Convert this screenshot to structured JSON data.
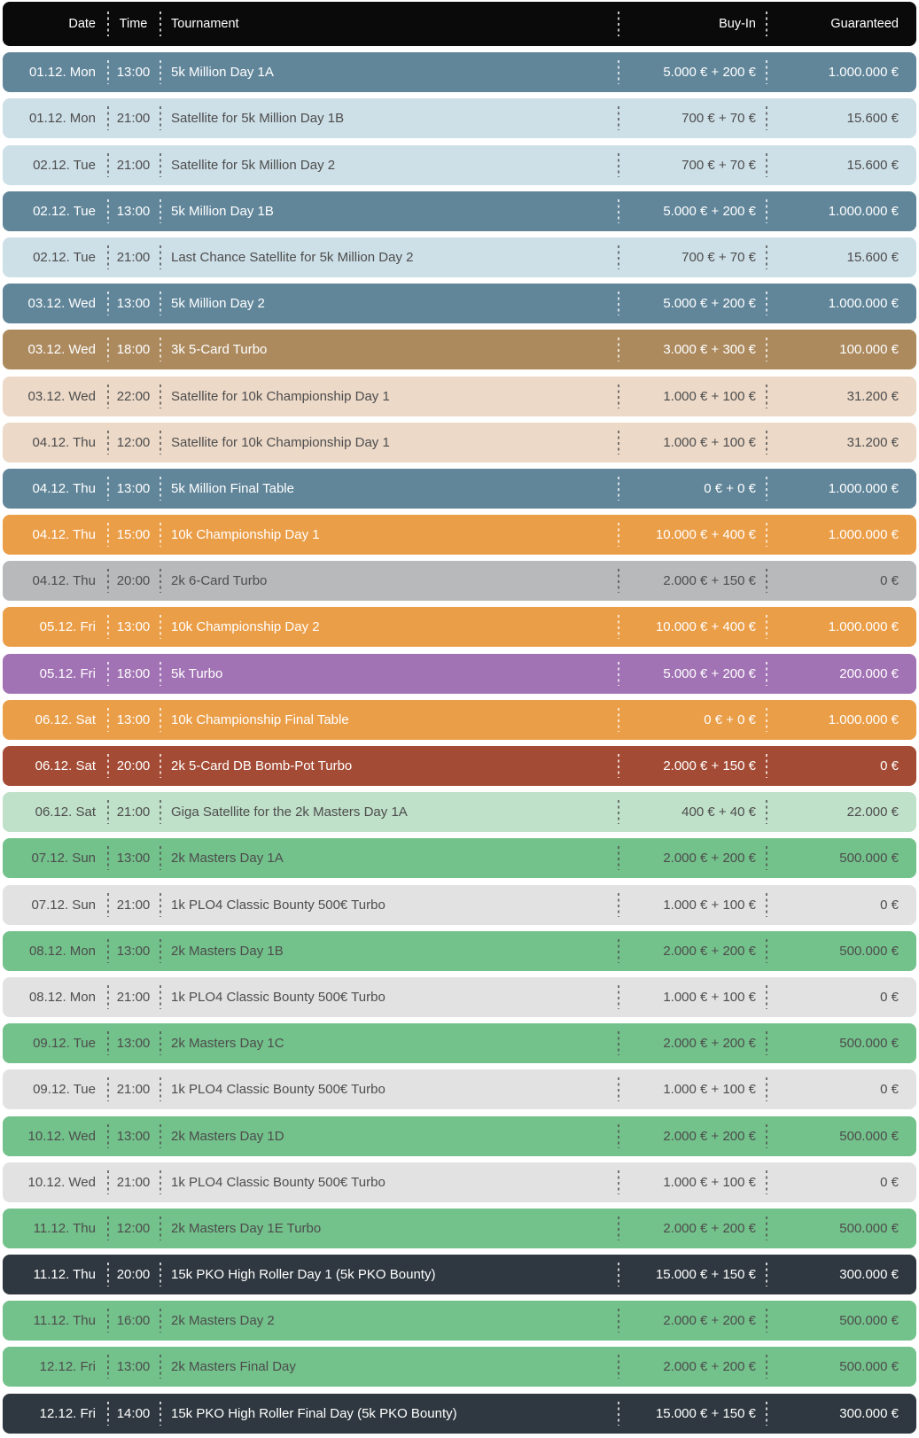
{
  "page": {
    "background": "#ffffff"
  },
  "header": {
    "background": "#0a0a0a",
    "text_color": "#ffffff",
    "labels": {
      "date": "Date",
      "time": "Time",
      "tournament": "Tournament",
      "buyin": "Buy-In",
      "guaranteed": "Guaranteed"
    }
  },
  "variants": {
    "blue": {
      "bg": "#61869a",
      "fg": "#ffffff"
    },
    "lightblue": {
      "bg": "#cddfe7",
      "fg": "#4d4d4d"
    },
    "brown": {
      "bg": "#ac8a5e",
      "fg": "#ffffff"
    },
    "tan": {
      "bg": "#ecd9c8",
      "fg": "#4d4d4d"
    },
    "orange": {
      "bg": "#eb9e48",
      "fg": "#ffffff"
    },
    "gray": {
      "bg": "#b8b9ba",
      "fg": "#4d4d4d"
    },
    "purple": {
      "bg": "#a273b4",
      "fg": "#ffffff"
    },
    "rust": {
      "bg": "#a44b35",
      "fg": "#ffffff"
    },
    "lightgreen": {
      "bg": "#bfe0c9",
      "fg": "#4d4d4d"
    },
    "green": {
      "bg": "#73c18b",
      "fg": "#4d4d4d"
    },
    "lightgray": {
      "bg": "#e2e2e2",
      "fg": "#4d4d4d"
    },
    "dark": {
      "bg": "#2f3840",
      "fg": "#ffffff"
    }
  },
  "rows": [
    {
      "date": "01.12. Mon",
      "time": "13:00",
      "tournament": "5k Million Day 1A",
      "buyin": "5.000 € + 200 €",
      "guaranteed": "1.000.000 €",
      "variant": "blue"
    },
    {
      "date": "01.12. Mon",
      "time": "21:00",
      "tournament": "Satellite for 5k Million Day 1B",
      "buyin": "700 € + 70 €",
      "guaranteed": "15.600 €",
      "variant": "lightblue"
    },
    {
      "date": "02.12. Tue",
      "time": "21:00",
      "tournament": "Satellite for 5k Million Day 2",
      "buyin": "700 € + 70 €",
      "guaranteed": "15.600 €",
      "variant": "lightblue"
    },
    {
      "date": "02.12. Tue",
      "time": "13:00",
      "tournament": "5k Million Day 1B",
      "buyin": "5.000 € + 200 €",
      "guaranteed": "1.000.000 €",
      "variant": "blue"
    },
    {
      "date": "02.12. Tue",
      "time": "21:00",
      "tournament": "Last Chance Satellite for 5k Million Day 2",
      "buyin": "700 € + 70 €",
      "guaranteed": "15.600 €",
      "variant": "lightblue"
    },
    {
      "date": "03.12. Wed",
      "time": "13:00",
      "tournament": "5k Million Day 2",
      "buyin": "5.000 € + 200 €",
      "guaranteed": "1.000.000 €",
      "variant": "blue"
    },
    {
      "date": "03.12. Wed",
      "time": "18:00",
      "tournament": "3k 5-Card Turbo",
      "buyin": "3.000 € + 300 €",
      "guaranteed": "100.000 €",
      "variant": "brown"
    },
    {
      "date": "03.12. Wed",
      "time": "22:00",
      "tournament": "Satellite for 10k Championship Day 1",
      "buyin": "1.000 € + 100 €",
      "guaranteed": "31.200 €",
      "variant": "tan"
    },
    {
      "date": "04.12. Thu",
      "time": "12:00",
      "tournament": "Satellite for 10k Championship Day 1",
      "buyin": "1.000 € + 100 €",
      "guaranteed": "31.200 €",
      "variant": "tan"
    },
    {
      "date": "04.12. Thu",
      "time": "13:00",
      "tournament": "5k Million Final Table",
      "buyin": "0 € + 0 €",
      "guaranteed": "1.000.000 €",
      "variant": "blue"
    },
    {
      "date": "04.12. Thu",
      "time": "15:00",
      "tournament": "10k Championship Day 1",
      "buyin": "10.000 € + 400 €",
      "guaranteed": "1.000.000 €",
      "variant": "orange"
    },
    {
      "date": "04.12. Thu",
      "time": "20:00",
      "tournament": "2k 6-Card Turbo",
      "buyin": "2.000 € + 150 €",
      "guaranteed": "0 €",
      "variant": "gray"
    },
    {
      "date": "05.12. Fri",
      "time": "13:00",
      "tournament": "10k Championship Day 2",
      "buyin": "10.000 € + 400 €",
      "guaranteed": "1.000.000 €",
      "variant": "orange"
    },
    {
      "date": "05.12. Fri",
      "time": "18:00",
      "tournament": "5k Turbo",
      "buyin": "5.000 € + 200 €",
      "guaranteed": "200.000 €",
      "variant": "purple"
    },
    {
      "date": "06.12. Sat",
      "time": "13:00",
      "tournament": "10k Championship Final Table",
      "buyin": "0 € + 0 €",
      "guaranteed": "1.000.000 €",
      "variant": "orange"
    },
    {
      "date": "06.12. Sat",
      "time": "20:00",
      "tournament": "2k 5-Card DB Bomb-Pot Turbo",
      "buyin": "2.000 € + 150 €",
      "guaranteed": "0 €",
      "variant": "rust"
    },
    {
      "date": "06.12. Sat",
      "time": "21:00",
      "tournament": "Giga Satellite for the 2k Masters Day 1A",
      "buyin": "400 € + 40 €",
      "guaranteed": "22.000 €",
      "variant": "lightgreen"
    },
    {
      "date": "07.12. Sun",
      "time": "13:00",
      "tournament": "2k Masters Day 1A",
      "buyin": "2.000 € + 200 €",
      "guaranteed": "500.000 €",
      "variant": "green"
    },
    {
      "date": "07.12. Sun",
      "time": "21:00",
      "tournament": "1k PLO4 Classic Bounty 500€ Turbo",
      "buyin": "1.000 € + 100 €",
      "guaranteed": "0 €",
      "variant": "lightgray"
    },
    {
      "date": "08.12. Mon",
      "time": "13:00",
      "tournament": "2k Masters Day 1B",
      "buyin": "2.000 € + 200 €",
      "guaranteed": "500.000 €",
      "variant": "green"
    },
    {
      "date": "08.12. Mon",
      "time": "21:00",
      "tournament": "1k PLO4 Classic Bounty 500€ Turbo",
      "buyin": "1.000 € + 100 €",
      "guaranteed": "0 €",
      "variant": "lightgray"
    },
    {
      "date": "09.12. Tue",
      "time": "13:00",
      "tournament": "2k Masters Day 1C",
      "buyin": "2.000 € + 200 €",
      "guaranteed": "500.000 €",
      "variant": "green"
    },
    {
      "date": "09.12. Tue",
      "time": "21:00",
      "tournament": "1k PLO4 Classic Bounty 500€ Turbo",
      "buyin": "1.000 € + 100 €",
      "guaranteed": "0 €",
      "variant": "lightgray"
    },
    {
      "date": "10.12. Wed",
      "time": "13:00",
      "tournament": "2k Masters Day 1D",
      "buyin": "2.000 € + 200 €",
      "guaranteed": "500.000 €",
      "variant": "green"
    },
    {
      "date": "10.12. Wed",
      "time": "21:00",
      "tournament": "1k PLO4 Classic Bounty 500€ Turbo",
      "buyin": "1.000 € + 100 €",
      "guaranteed": "0 €",
      "variant": "lightgray"
    },
    {
      "date": "11.12. Thu",
      "time": "12:00",
      "tournament": "2k Masters Day 1E Turbo",
      "buyin": "2.000 € + 200 €",
      "guaranteed": "500.000 €",
      "variant": "green"
    },
    {
      "date": "11.12. Thu",
      "time": "20:00",
      "tournament": "15k PKO High Roller Day 1 (5k PKO Bounty)",
      "buyin": "15.000 € + 150 €",
      "guaranteed": "300.000 €",
      "variant": "dark"
    },
    {
      "date": "11.12. Thu",
      "time": "16:00",
      "tournament": "2k Masters Day 2",
      "buyin": "2.000 € + 200 €",
      "guaranteed": "500.000 €",
      "variant": "green"
    },
    {
      "date": "12.12. Fri",
      "time": "13:00",
      "tournament": "2k Masters Final Day",
      "buyin": "2.000 € + 200 €",
      "guaranteed": "500.000 €",
      "variant": "green"
    },
    {
      "date": "12.12. Fri",
      "time": "14:00",
      "tournament": "15k PKO High Roller Final Day (5k PKO Bounty)",
      "buyin": "15.000 € + 150 €",
      "guaranteed": "300.000 €",
      "variant": "dark"
    }
  ]
}
